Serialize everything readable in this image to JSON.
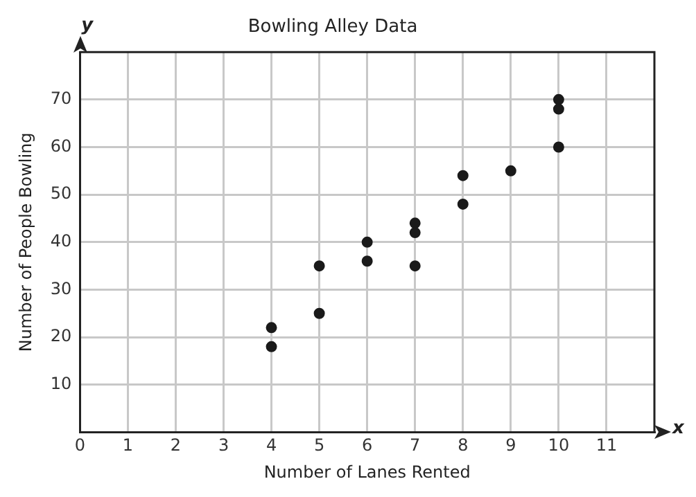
{
  "chart_data": {
    "type": "scatter",
    "title": "Bowling Alley Data",
    "xlabel": "Number of Lanes Rented",
    "ylabel": "Number of People Bowling",
    "annotations": [
      "x",
      "y"
    ],
    "x": [
      4,
      4,
      5,
      5,
      6,
      6,
      7,
      7,
      7,
      8,
      8,
      9,
      10,
      10,
      10
    ],
    "series": [
      {
        "color": "#1a1a1a",
        "values": [
          22,
          18,
          35,
          25,
          40,
          36,
          44,
          42,
          35,
          54,
          48,
          55,
          70,
          68,
          60
        ]
      }
    ],
    "xlim": [
      0,
      12
    ],
    "xticks": [
      0,
      1,
      2,
      3,
      4,
      5,
      6,
      7,
      8,
      9,
      10,
      11
    ],
    "ylim": [
      0,
      80
    ],
    "yticks": [
      10,
      20,
      30,
      40,
      50,
      60,
      70
    ],
    "grid": true,
    "legend": false,
    "marker": "circle"
  }
}
